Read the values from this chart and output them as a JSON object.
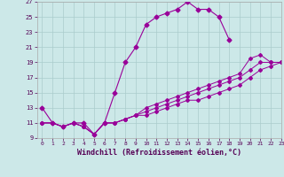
{
  "xlabel": "Windchill (Refroidissement éolien,°C)",
  "bg_color": "#cce8e8",
  "grid_color": "#aacccc",
  "line_color": "#990099",
  "xlim": [
    -0.5,
    23
  ],
  "ylim": [
    9,
    27
  ],
  "yticks": [
    9,
    11,
    13,
    15,
    17,
    19,
    21,
    23,
    25,
    27
  ],
  "xticks": [
    0,
    1,
    2,
    3,
    4,
    5,
    6,
    7,
    8,
    9,
    10,
    11,
    12,
    13,
    14,
    15,
    16,
    17,
    18,
    19,
    20,
    21,
    22,
    23
  ],
  "main_curve": {
    "x": [
      0,
      1,
      2,
      3,
      4,
      5,
      6,
      7,
      8,
      9,
      10,
      11,
      12,
      13,
      14,
      15,
      16,
      17,
      18
    ],
    "y": [
      13,
      11,
      10.5,
      11,
      11,
      9.5,
      11,
      15,
      19,
      21,
      24,
      25,
      25.5,
      26,
      27,
      26,
      26,
      25,
      22
    ]
  },
  "flat_curves": [
    {
      "x": [
        0,
        1,
        2,
        3,
        4,
        5,
        6,
        7,
        8,
        9,
        10,
        11,
        12,
        13,
        14,
        15,
        16,
        17,
        18,
        19,
        20,
        21,
        22,
        23
      ],
      "y": [
        11,
        11,
        10.5,
        11,
        10.5,
        9.5,
        11,
        11,
        11.5,
        12,
        13,
        13.5,
        14,
        14.5,
        15,
        15.5,
        16,
        16.5,
        17,
        17.5,
        19.5,
        20,
        19,
        19
      ]
    },
    {
      "x": [
        0,
        1,
        2,
        3,
        4,
        5,
        6,
        7,
        8,
        9,
        10,
        11,
        12,
        13,
        14,
        15,
        16,
        17,
        18,
        19,
        20,
        21,
        22,
        23
      ],
      "y": [
        11,
        11,
        10.5,
        11,
        10.5,
        9.5,
        11,
        11,
        11.5,
        12,
        12.5,
        13,
        13.5,
        14,
        14.5,
        15,
        15.5,
        16,
        16.5,
        17,
        18,
        19,
        19,
        19
      ]
    },
    {
      "x": [
        0,
        1,
        2,
        3,
        4,
        5,
        6,
        7,
        8,
        9,
        10,
        11,
        12,
        13,
        14,
        15,
        16,
        17,
        18,
        19,
        20,
        21,
        22,
        23
      ],
      "y": [
        11,
        11,
        10.5,
        11,
        10.5,
        9.5,
        11,
        11,
        11.5,
        12,
        12,
        12.5,
        13,
        13.5,
        14,
        14,
        14.5,
        15,
        15.5,
        16,
        17,
        18,
        18.5,
        19
      ]
    }
  ]
}
